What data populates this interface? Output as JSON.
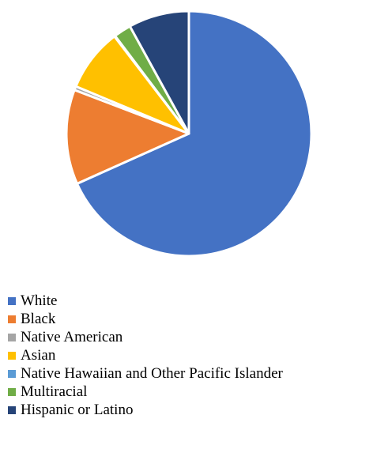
{
  "chart_data": {
    "type": "pie",
    "categories": [
      "White",
      "Black",
      "Native American",
      "Asian",
      "Native Hawaiian and Other Pacific Islander",
      "Multiracial",
      "Hispanic or Latino"
    ],
    "values": [
      68.3,
      12.5,
      0.5,
      8.3,
      0.1,
      2.3,
      8.0
    ],
    "colors": [
      "#4472C4",
      "#ED7D31",
      "#A5A5A5",
      "#FFC000",
      "#5B9BD5",
      "#70AD47",
      "#264478"
    ],
    "start_angle_deg": 0,
    "direction": "clockwise",
    "title": "",
    "legend_position": "bottom-left"
  }
}
